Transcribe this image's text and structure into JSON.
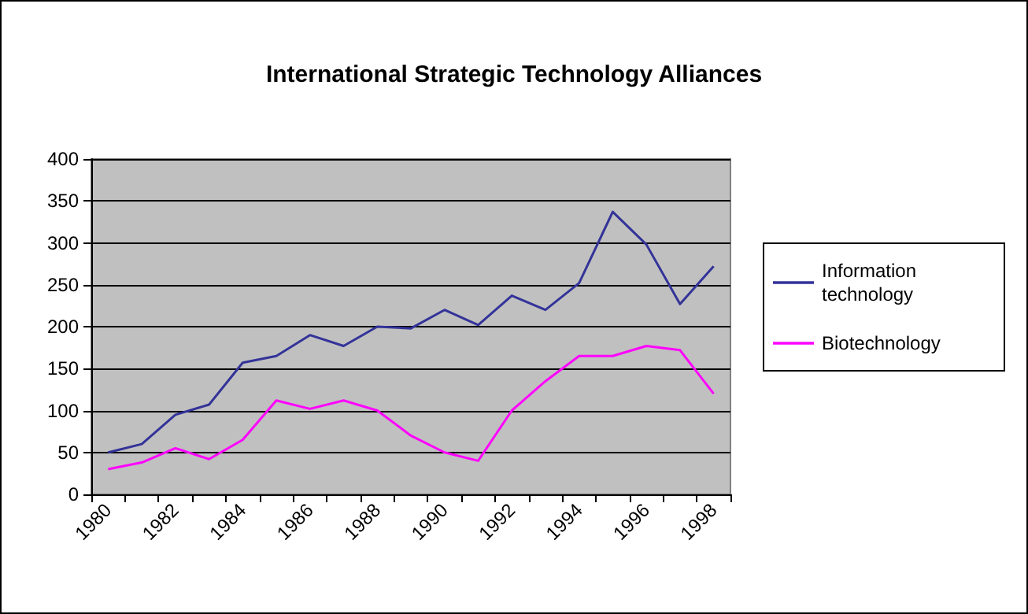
{
  "chart_data": {
    "type": "line",
    "title": "International Strategic Technology Alliances",
    "categories": [
      "1980",
      null,
      "1982",
      null,
      "1984",
      null,
      "1986",
      null,
      "1988",
      null,
      "1990",
      null,
      "1992",
      null,
      "1994",
      null,
      "1996",
      null,
      "1998"
    ],
    "series": [
      {
        "name": "Information technology",
        "color": "#333399",
        "values": [
          50,
          60,
          95,
          107,
          157,
          165,
          190,
          177,
          200,
          198,
          220,
          202,
          237,
          220,
          252,
          337,
          298,
          227,
          272
        ]
      },
      {
        "name": "Biotechnology",
        "color": "#ff00ff",
        "values": [
          30,
          38,
          55,
          42,
          65,
          112,
          102,
          112,
          100,
          70,
          50,
          40,
          100,
          135,
          165,
          165,
          177,
          172,
          120
        ]
      }
    ],
    "ylim": [
      0,
      400
    ],
    "yticks": [
      0,
      50,
      100,
      150,
      200,
      250,
      300,
      350,
      400
    ],
    "grid": "y",
    "legend": "right",
    "marker": "none",
    "line_style": "solid"
  }
}
